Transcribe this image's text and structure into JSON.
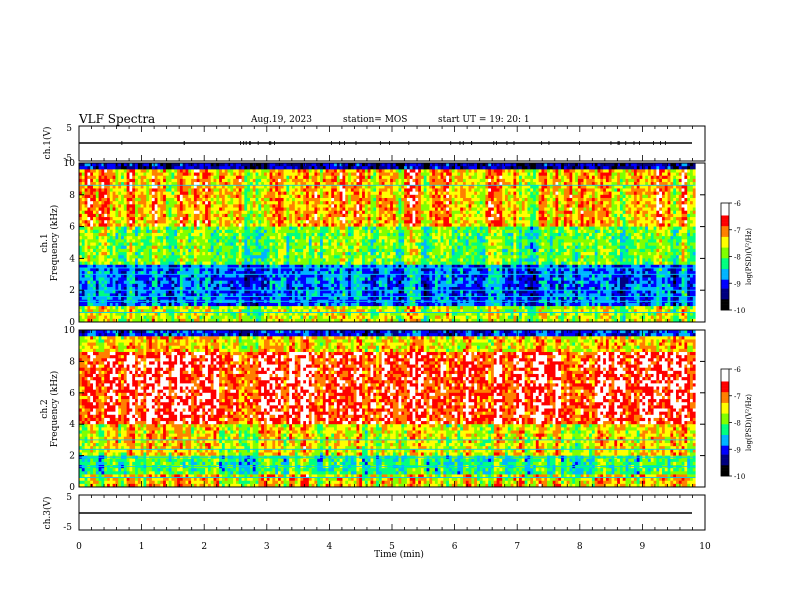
{
  "header": {
    "title": "VLF Spectra",
    "date": "Aug.19, 2023",
    "station": "station= MOS",
    "start": "start  UT =   19: 20: 1"
  },
  "chart_data": [
    {
      "type": "line",
      "name": "ch1-waveform",
      "ylabel": "ch.1(V)",
      "ylim": [
        -5,
        5
      ],
      "ytick_labels": [
        "5",
        "-5"
      ],
      "xlim": [
        0,
        10
      ],
      "level": -0.2
    },
    {
      "type": "heatmap",
      "name": "ch1-spectrogram",
      "ylabel_channel": "ch.1",
      "ylabel": "Frequency (kHz)",
      "ylim": [
        0,
        10
      ],
      "ytick_labels": [
        "0",
        "2",
        "4",
        "6",
        "8",
        "10"
      ],
      "xlim": [
        0,
        9.85
      ],
      "colorbar": {
        "label": "log(PSD)(V²/Hz)",
        "range": [
          -10,
          -6
        ],
        "tick_labels": [
          "-6",
          "-7",
          "-8",
          "-9",
          "-10"
        ]
      },
      "lines_khz": [
        0.6,
        1.3,
        1.6,
        2.0,
        3.0,
        3.4,
        8.6
      ]
    },
    {
      "type": "heatmap",
      "name": "ch2-spectrogram",
      "ylabel_channel": "ch.2",
      "ylabel": "Frequency (kHz)",
      "ylim": [
        0,
        10
      ],
      "ytick_labels": [
        "0",
        "2",
        "4",
        "6",
        "8",
        "10"
      ],
      "xlim": [
        0,
        9.85
      ],
      "colorbar": {
        "label": "log(PSD)(V²/Hz)",
        "range": [
          -10,
          -6
        ],
        "tick_labels": [
          "-6",
          "-7",
          "-8",
          "-9",
          "-10"
        ]
      },
      "lines_khz": [
        0.6,
        1.3,
        1.9,
        2.4,
        3.0
      ]
    },
    {
      "type": "line",
      "name": "ch3-waveform",
      "ylabel": "ch.3(V)",
      "ylim": [
        -5,
        5
      ],
      "ytick_labels": [
        "5",
        "-5"
      ],
      "xlim": [
        0,
        10
      ],
      "level": -0.3
    }
  ],
  "x_axis": {
    "label": "Time (min)",
    "range": [
      0,
      10
    ],
    "tick_labels": [
      "0",
      "1",
      "2",
      "3",
      "4",
      "5",
      "6",
      "7",
      "8",
      "9",
      "10"
    ]
  },
  "colors": {
    "scale": [
      "#000000",
      "#000080",
      "#0000ff",
      "#00b4ff",
      "#00ff80",
      "#80ff00",
      "#ffff00",
      "#ff8000",
      "#ff0000",
      "#ffffff"
    ]
  }
}
